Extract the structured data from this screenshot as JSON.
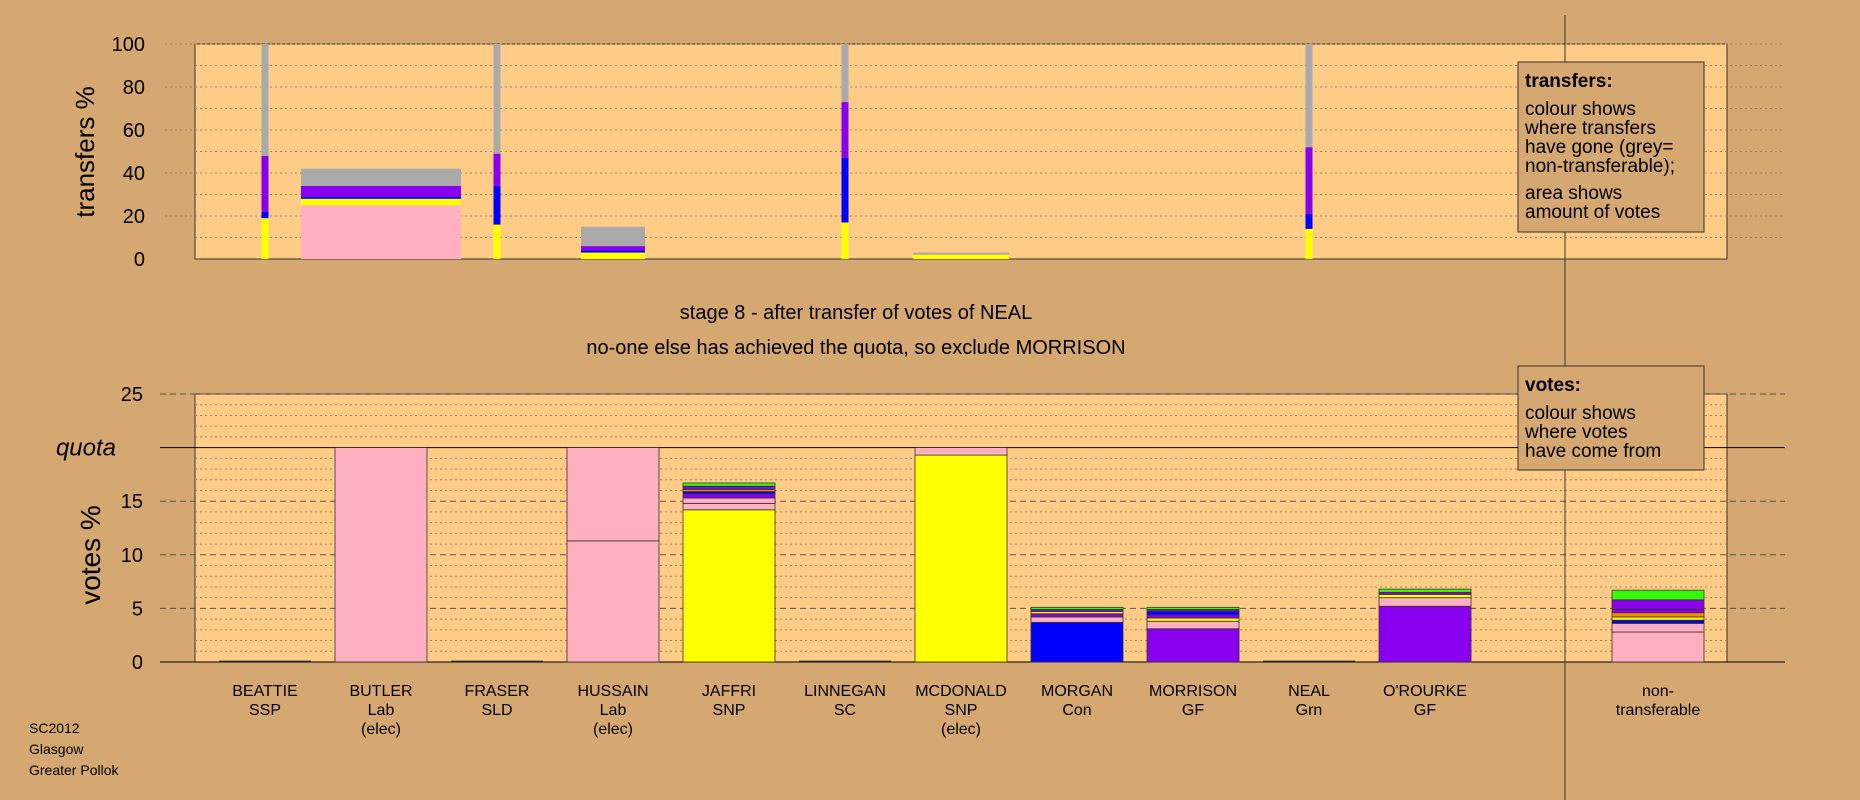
{
  "colors": {
    "background": "#d4a870",
    "plot": "#ffcc88",
    "Lab": "#ffb0c0",
    "SNP": "#ffff00",
    "Con": "#0000ff",
    "GF": "#8800ee",
    "Grn": "#33ff00",
    "SSP": "#ff0000",
    "SC": "#ff8800",
    "nt": "#aaaaaa",
    "dark": "#222222"
  },
  "title_lines": [
    "stage 8 - after transfer of votes of NEAL",
    "no-one else has achieved the quota, so exclude MORRISON"
  ],
  "footer": [
    "SC2012",
    "Glasgow",
    "Greater Pollok"
  ],
  "legend_transfers": {
    "heading": "transfers:",
    "lines": [
      "colour shows",
      "where transfers",
      "have gone (grey=",
      "non-transferable);",
      "area shows",
      "amount of votes"
    ]
  },
  "legend_votes": {
    "heading": "votes:",
    "lines": [
      "colour shows",
      "where votes",
      "have come from"
    ]
  },
  "chart_data": [
    {
      "type": "bar",
      "ylabel": "transfers %",
      "ylim": [
        0,
        100
      ],
      "yticks": [
        0,
        20,
        40,
        60,
        80,
        100
      ],
      "bars": [
        {
          "cand": 0,
          "width_pct": 1,
          "segs": [
            {
              "p": "SNP",
              "v": 19
            },
            {
              "p": "Con",
              "v": 3
            },
            {
              "p": "GF",
              "v": 26
            },
            {
              "p": "nt",
              "v": 52
            }
          ]
        },
        {
          "cand": 1,
          "width_pct": 20,
          "segs": [
            {
              "p": "Lab",
              "v": 25
            },
            {
              "p": "SNP",
              "v": 3
            },
            {
              "p": "Con",
              "v": 1
            },
            {
              "p": "GF",
              "v": 5
            },
            {
              "p": "nt",
              "v": 8
            }
          ]
        },
        {
          "cand": 2,
          "width_pct": 1,
          "segs": [
            {
              "p": "SNP",
              "v": 16
            },
            {
              "p": "Con",
              "v": 18
            },
            {
              "p": "GF",
              "v": 15
            },
            {
              "p": "nt",
              "v": 51
            }
          ]
        },
        {
          "cand": 3,
          "width_pct": 8,
          "segs": [
            {
              "p": "SNP",
              "v": 3
            },
            {
              "p": "Con",
              "v": 1
            },
            {
              "p": "GF",
              "v": 2
            },
            {
              "p": "nt",
              "v": 9
            }
          ]
        },
        {
          "cand": 5,
          "width_pct": 1,
          "segs": [
            {
              "p": "SNP",
              "v": 17
            },
            {
              "p": "Con",
              "v": 30
            },
            {
              "p": "GF",
              "v": 26
            },
            {
              "p": "nt",
              "v": 27
            }
          ]
        },
        {
          "cand": 6,
          "width_pct": 12,
          "segs": [
            {
              "p": "SNP",
              "v": 2
            },
            {
              "p": "nt",
              "v": 1
            }
          ]
        },
        {
          "cand": 9,
          "width_pct": 1,
          "segs": [
            {
              "p": "SNP",
              "v": 14
            },
            {
              "p": "Con",
              "v": 7
            },
            {
              "p": "GF",
              "v": 31
            },
            {
              "p": "nt",
              "v": 48
            }
          ]
        }
      ]
    },
    {
      "type": "bar",
      "ylabel": "votes %",
      "ylim": [
        0,
        25
      ],
      "yticks": [
        0,
        5,
        10,
        15,
        20,
        25
      ],
      "quota": 20,
      "quota_label": "quota",
      "categories": [
        {
          "name": "BEATTIE",
          "party": "SSP",
          "note": ""
        },
        {
          "name": "BUTLER",
          "party": "Lab",
          "note": "(elec)"
        },
        {
          "name": "FRASER",
          "party": "SLD",
          "note": ""
        },
        {
          "name": "HUSSAIN",
          "party": "Lab",
          "note": "(elec)"
        },
        {
          "name": "JAFFRI",
          "party": "SNP",
          "note": ""
        },
        {
          "name": "LINNEGAN",
          "party": "SC",
          "note": ""
        },
        {
          "name": "MCDONALD",
          "party": "SNP",
          "note": "(elec)"
        },
        {
          "name": "MORGAN",
          "party": "Con",
          "note": ""
        },
        {
          "name": "MORRISON",
          "party": "GF",
          "note": ""
        },
        {
          "name": "NEAL",
          "party": "Grn",
          "note": ""
        },
        {
          "name": "O'ROURKE",
          "party": "GF",
          "note": ""
        },
        {
          "name": "",
          "party": "",
          "note": ""
        },
        {
          "name": "non-",
          "party": "transferable",
          "note": ""
        }
      ],
      "stacks": [
        [],
        [
          {
            "p": "Lab",
            "v": 20
          }
        ],
        [],
        [
          {
            "p": "Lab",
            "v": 11.3
          },
          {
            "p": "Lab",
            "v": 8.7
          }
        ],
        [
          {
            "p": "SNP",
            "v": 14.2
          },
          {
            "p": "Lab",
            "v": 0.6
          },
          {
            "p": "Lab",
            "v": 0.5
          },
          {
            "p": "GF",
            "v": 0.4
          },
          {
            "p": "Con",
            "v": 0.2
          },
          {
            "p": "SC",
            "v": 0.2
          },
          {
            "p": "GF",
            "v": 0.3
          },
          {
            "p": "Grn",
            "v": 0.3
          }
        ],
        [],
        [
          {
            "p": "SNP",
            "v": 19.3
          },
          {
            "p": "Lab",
            "v": 0.7
          }
        ],
        [
          {
            "p": "Con",
            "v": 3.7
          },
          {
            "p": "Lab",
            "v": 0.5
          },
          {
            "p": "GF",
            "v": 0.3
          },
          {
            "p": "SNP",
            "v": 0.2
          },
          {
            "p": "GF",
            "v": 0.2
          },
          {
            "p": "Grn",
            "v": 0.2
          }
        ],
        [
          {
            "p": "GF",
            "v": 3.1
          },
          {
            "p": "Lab",
            "v": 0.7
          },
          {
            "p": "SNP",
            "v": 0.3
          },
          {
            "p": "GF",
            "v": 0.3
          },
          {
            "p": "Con",
            "v": 0.3
          },
          {
            "p": "GF",
            "v": 0.2
          },
          {
            "p": "Grn",
            "v": 0.2
          }
        ],
        [],
        [
          {
            "p": "GF",
            "v": 5.2
          },
          {
            "p": "Lab",
            "v": 0.8
          },
          {
            "p": "SNP",
            "v": 0.3
          },
          {
            "p": "GF",
            "v": 0.2
          },
          {
            "p": "Grn",
            "v": 0.3
          }
        ],
        [],
        [
          {
            "p": "Lab",
            "v": 2.8
          },
          {
            "p": "Lab",
            "v": 0.8
          },
          {
            "p": "Con",
            "v": 0.3
          },
          {
            "p": "SNP",
            "v": 0.3
          },
          {
            "p": "SC",
            "v": 0.4
          },
          {
            "p": "GF",
            "v": 0.3
          },
          {
            "p": "GF",
            "v": 0.9
          },
          {
            "p": "Grn",
            "v": 0.9
          }
        ]
      ]
    }
  ]
}
